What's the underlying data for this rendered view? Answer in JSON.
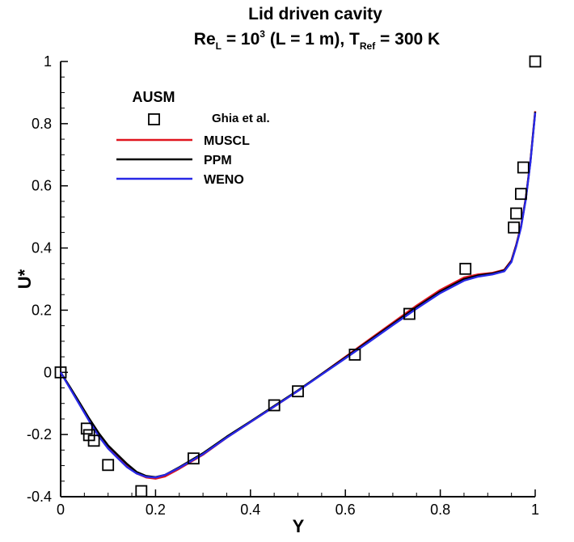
{
  "chart_data": {
    "type": "line",
    "title_line1": "Lid driven cavity",
    "title_line2": {
      "re": "Re",
      "re_sub": "L",
      "eq1": " = 10",
      "exp": "3",
      "mid": " (L = 1 m), T",
      "t_sub": "Ref",
      "end": " = 300 K"
    },
    "xlabel": "Y",
    "ylabel": "U*",
    "xlim": [
      0,
      1
    ],
    "ylim": [
      -0.4,
      1
    ],
    "xticks": [
      0,
      0.2,
      0.4,
      0.6,
      0.8,
      1
    ],
    "xtick_labels": [
      "0",
      "0.2",
      "0.4",
      "0.6",
      "0.8",
      "1"
    ],
    "yticks": [
      -0.4,
      -0.2,
      0,
      0.2,
      0.4,
      0.6,
      0.8,
      1
    ],
    "ytick_labels": [
      "-0.4",
      "-0.2",
      "0",
      "0.2",
      "0.4",
      "0.6",
      "0.8",
      "1"
    ],
    "legend_title": "AUSM",
    "legend_position": "top-left",
    "grid": false,
    "series": [
      {
        "name": "MUSCL",
        "color": "#e0141e",
        "style": "line",
        "x": [
          0,
          0.02,
          0.04,
          0.06,
          0.08,
          0.1,
          0.12,
          0.14,
          0.16,
          0.18,
          0.2,
          0.22,
          0.25,
          0.3,
          0.35,
          0.4,
          0.45,
          0.5,
          0.55,
          0.6,
          0.65,
          0.7,
          0.75,
          0.8,
          0.85,
          0.88,
          0.91,
          0.935,
          0.95,
          0.96,
          0.97,
          0.98,
          0.99,
          1.0
        ],
        "y": [
          0,
          -0.05,
          -0.1,
          -0.15,
          -0.2,
          -0.24,
          -0.27,
          -0.3,
          -0.325,
          -0.338,
          -0.342,
          -0.335,
          -0.31,
          -0.265,
          -0.21,
          -0.16,
          -0.11,
          -0.06,
          -0.005,
          0.05,
          0.105,
          0.16,
          0.215,
          0.265,
          0.305,
          0.315,
          0.32,
          0.33,
          0.36,
          0.41,
          0.47,
          0.56,
          0.68,
          0.84
        ]
      },
      {
        "name": "PPM",
        "color": "#000000",
        "style": "line",
        "x": [
          0,
          0.02,
          0.04,
          0.06,
          0.08,
          0.1,
          0.12,
          0.14,
          0.16,
          0.18,
          0.2,
          0.22,
          0.25,
          0.3,
          0.35,
          0.4,
          0.45,
          0.5,
          0.55,
          0.6,
          0.65,
          0.7,
          0.75,
          0.8,
          0.85,
          0.88,
          0.91,
          0.935,
          0.95,
          0.96,
          0.97,
          0.98,
          0.99,
          1.0
        ],
        "y": [
          0,
          -0.048,
          -0.098,
          -0.148,
          -0.195,
          -0.235,
          -0.265,
          -0.295,
          -0.32,
          -0.333,
          -0.337,
          -0.33,
          -0.305,
          -0.26,
          -0.207,
          -0.158,
          -0.108,
          -0.058,
          -0.005,
          0.048,
          0.102,
          0.156,
          0.21,
          0.26,
          0.3,
          0.312,
          0.318,
          0.328,
          0.358,
          0.408,
          0.468,
          0.558,
          0.678,
          0.838
        ]
      },
      {
        "name": "WENO",
        "color": "#2828e6",
        "style": "line",
        "x": [
          0,
          0.02,
          0.04,
          0.06,
          0.08,
          0.1,
          0.12,
          0.14,
          0.16,
          0.18,
          0.2,
          0.22,
          0.25,
          0.3,
          0.35,
          0.4,
          0.45,
          0.5,
          0.55,
          0.6,
          0.65,
          0.7,
          0.75,
          0.8,
          0.85,
          0.88,
          0.91,
          0.935,
          0.95,
          0.96,
          0.97,
          0.98,
          0.99,
          1.0
        ],
        "y": [
          0,
          -0.052,
          -0.104,
          -0.156,
          -0.205,
          -0.245,
          -0.275,
          -0.305,
          -0.325,
          -0.336,
          -0.338,
          -0.33,
          -0.307,
          -0.263,
          -0.21,
          -0.16,
          -0.11,
          -0.06,
          -0.007,
          0.045,
          0.098,
          0.152,
          0.205,
          0.255,
          0.295,
          0.308,
          0.315,
          0.325,
          0.355,
          0.405,
          0.465,
          0.555,
          0.675,
          0.835
        ]
      },
      {
        "name": "Ghia et al.",
        "color": "#000000",
        "style": "marker",
        "x": [
          0.0,
          0.055,
          0.06,
          0.07,
          0.1,
          0.17,
          0.28,
          0.45,
          0.5,
          0.62,
          0.735,
          0.853,
          0.955,
          0.96,
          0.97,
          0.975,
          1.0
        ],
        "y": [
          0.0,
          -0.181,
          -0.202,
          -0.22,
          -0.298,
          -0.382,
          -0.277,
          -0.106,
          -0.061,
          0.057,
          0.188,
          0.333,
          0.466,
          0.511,
          0.574,
          0.659,
          1.0
        ]
      }
    ]
  }
}
